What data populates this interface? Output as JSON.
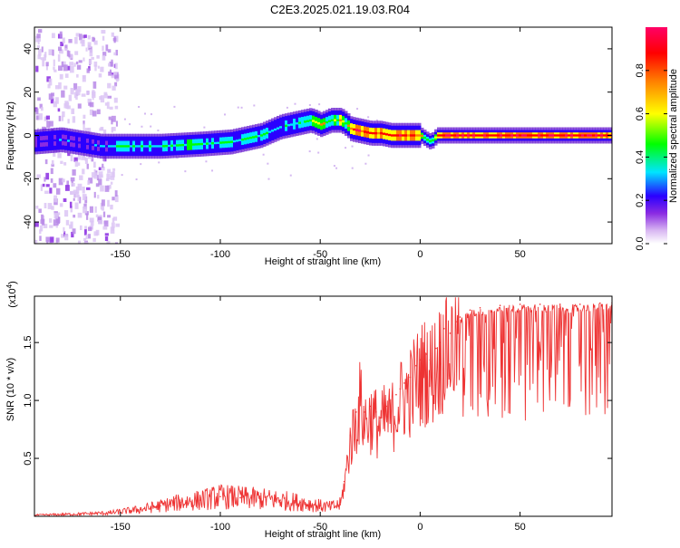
{
  "title": "C2E3.2025.021.19.03.R04",
  "colorbar": {
    "label": "Normalized spectral amplitude",
    "ticks": [
      "0.0",
      "0.2",
      "0.4",
      "0.6",
      "0.8"
    ],
    "tick_values": [
      0.0,
      0.2,
      0.4,
      0.6,
      0.8
    ],
    "range": [
      0,
      1
    ],
    "colormap": [
      "#ffffff",
      "#d9b8f2",
      "#8a2be2",
      "#2a00ff",
      "#00e5ff",
      "#00ff00",
      "#ffff00",
      "#ff8000",
      "#ff0000",
      "#ff0066"
    ]
  },
  "chart_data": [
    {
      "type": "heatmap",
      "xlabel": "Height of straight line (km)",
      "ylabel": "Frequency (Hz)",
      "xlim": [
        -193,
        96
      ],
      "ylim": [
        -50,
        50
      ],
      "xticks": [
        -150,
        -100,
        -50,
        0,
        50
      ],
      "xtick_labels": [
        "-150",
        "-100",
        "-50",
        "0",
        "50"
      ],
      "yticks": [
        40,
        20,
        0,
        -20,
        -40
      ],
      "ytick_labels": [
        "40",
        "20",
        "0",
        "-20",
        "-40"
      ],
      "ridge": {
        "x": [
          -193,
          -180,
          -160,
          -150,
          -130,
          -110,
          -95,
          -80,
          -70,
          -60,
          -55,
          -50,
          -45,
          -40,
          -37,
          -35,
          -30,
          -25,
          -20,
          -15,
          -10,
          -5,
          0,
          3,
          5,
          8,
          12,
          15,
          20,
          30,
          40,
          50,
          60,
          70,
          80,
          90,
          96
        ],
        "y": [
          -3,
          -2,
          -5,
          -5,
          -5,
          -4,
          -3,
          0,
          4,
          6,
          7,
          5,
          7,
          7,
          5,
          3,
          2,
          1,
          1,
          0,
          0,
          0,
          0,
          -2,
          -3,
          0,
          0,
          0,
          0,
          0,
          0,
          0,
          0,
          0,
          0,
          0,
          0
        ],
        "amplitude": [
          0.3,
          0.35,
          0.4,
          0.5,
          0.52,
          0.55,
          0.5,
          0.5,
          0.45,
          0.5,
          0.6,
          0.7,
          0.55,
          0.75,
          0.6,
          0.9,
          0.88,
          0.9,
          0.85,
          0.9,
          0.88,
          0.85,
          0.75,
          0.6,
          0.55,
          0.8,
          0.9,
          0.92,
          0.92,
          0.92,
          0.92,
          0.92,
          0.92,
          0.92,
          0.92,
          0.92,
          0.92
        ]
      },
      "noise_region_x": [
        -193,
        -152
      ]
    },
    {
      "type": "line",
      "xlabel": "Height of straight line (km)",
      "ylabel": "SNR (10 * v/v)",
      "scale_label": "(x10",
      "scale_exponent": "4",
      "y_multiplier": 10000,
      "xlim": [
        -193,
        96
      ],
      "ylim": [
        0,
        1.9
      ],
      "xticks": [
        -150,
        -100,
        -50,
        0,
        50
      ],
      "xtick_labels": [
        "-150",
        "-100",
        "-50",
        "0",
        "50"
      ],
      "yticks": [
        0.5,
        1.0,
        1.5
      ],
      "ytick_labels": [
        "0.5",
        "1.0",
        "1.5"
      ],
      "series": [
        {
          "color": "#ee3333",
          "x": [
            -193,
            -170,
            -155,
            -140,
            -130,
            -120,
            -110,
            -100,
            -90,
            -80,
            -70,
            -60,
            -50,
            -45,
            -40,
            -38,
            -35,
            -32,
            -30,
            -28,
            -25,
            -22,
            -20,
            -17,
            -15,
            -12,
            -10,
            -8,
            -5,
            -2,
            0,
            3,
            5,
            8,
            10,
            12,
            15,
            18,
            20,
            25,
            30,
            40,
            50,
            60,
            70,
            80,
            90,
            96
          ],
          "y": [
            0.01,
            0.02,
            0.03,
            0.06,
            0.09,
            0.12,
            0.14,
            0.17,
            0.16,
            0.15,
            0.14,
            0.12,
            0.09,
            0.08,
            0.1,
            0.3,
            0.7,
            0.9,
            1.1,
            0.9,
            0.95,
            0.9,
            0.85,
            0.95,
            0.9,
            1.05,
            1.1,
            1.15,
            1.2,
            1.3,
            1.35,
            1.4,
            1.35,
            1.45,
            1.5,
            1.62,
            1.58,
            1.68,
            1.72,
            1.78,
            1.8,
            1.82,
            1.83,
            1.83,
            1.83,
            1.83,
            1.84,
            1.84
          ]
        }
      ]
    }
  ]
}
